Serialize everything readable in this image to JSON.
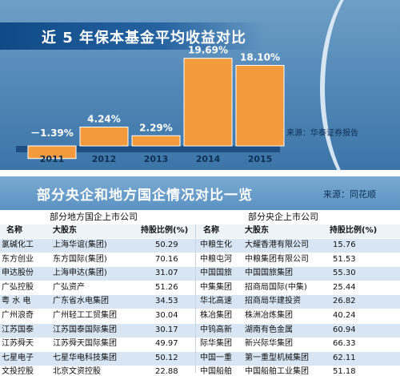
{
  "chart": {
    "title": "近 5 年保本基金平均收益对比",
    "source": "来源：华泰证券报告",
    "bar_color": "#f39a3c",
    "bar_stroke": "#ffffff"
  },
  "chart_data": {
    "type": "bar",
    "title": "近 5 年保本基金平均收益对比",
    "categories": [
      "2011",
      "2012",
      "2013",
      "2014",
      "2015"
    ],
    "values": [
      -1.39,
      4.24,
      2.29,
      19.69,
      18.1
    ],
    "value_labels": [
      "－1.39%",
      "4.24%",
      "2.29%",
      "19.69%",
      "18.10%"
    ],
    "xlabel": "",
    "ylabel": "",
    "ylim": [
      -1.5,
      20
    ],
    "grid": false,
    "legend": "none"
  },
  "table": {
    "title": "部分央企和地方国企情况对比一览",
    "source": "来源：同花顺",
    "colors": {
      "alt_row": "#d8e6f3",
      "header_band": "#5b92c2"
    },
    "local": {
      "subtitle": "部分地方国企上市公司",
      "headers": [
        "名称",
        "大股东",
        "持股比例(%)"
      ],
      "rows": [
        [
          "氯碱化工",
          "上海华谊(集团)",
          "50.29"
        ],
        [
          "东方创业",
          "东方国际(集团)",
          "70.16"
        ],
        [
          "申达股份",
          "上海申达(集团)",
          "31.07"
        ],
        [
          "广弘控股",
          "广弘资产",
          "51.26"
        ],
        [
          "粤 水 电",
          "广东省水电集团",
          "34.53"
        ],
        [
          "广州浪奇",
          "广州轻工工贸集团",
          "30.04"
        ],
        [
          "江苏国泰",
          "江苏国泰国际集团",
          "30.17"
        ],
        [
          "江苏舜天",
          "江苏舜天国际集团",
          "49.97"
        ],
        [
          "七星电子",
          "七星华电科技集团",
          "50.12"
        ],
        [
          "文投控股",
          "北京文资控股",
          "22.88"
        ]
      ]
    },
    "central": {
      "subtitle": "部分央企上市公司",
      "headers": [
        "名称",
        "大股东",
        "持股比例(%)"
      ],
      "rows": [
        [
          "中粮生化",
          "大耀香港有限公司",
          "15.76"
        ],
        [
          "中粮屯河",
          "中粮集团有限公司",
          "51.53"
        ],
        [
          "中国国旅",
          "中国国旅集团",
          "55.30"
        ],
        [
          "中集集团",
          "招商局国际(中集)",
          "25.44"
        ],
        [
          "华北高速",
          "招商局华建投资",
          "26.82"
        ],
        [
          "株冶集团",
          "株洲冶炼集团",
          "40.24"
        ],
        [
          "中钨高新",
          "湖南有色金属",
          "60.94"
        ],
        [
          "际华集团",
          "新兴际华集团",
          "66.33"
        ],
        [
          "中国一重",
          "第一重型机械集团",
          "62.11"
        ],
        [
          "中国船舶",
          "中国船舶工业集团",
          "51.18"
        ]
      ]
    }
  }
}
